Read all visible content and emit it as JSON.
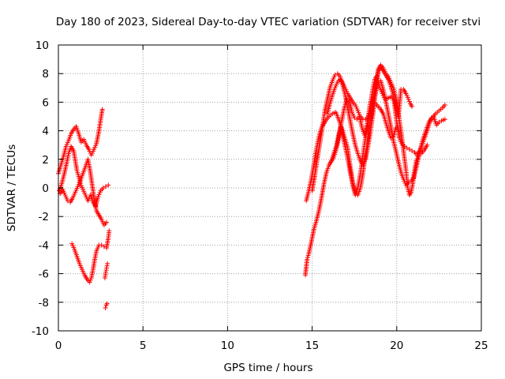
{
  "chart_data": {
    "type": "scatter",
    "title": "Day 180 of 2023, Sidereal Day-to-day VTEC variation (SDTVAR) for receiver stvi",
    "xlabel": "GPS time / hours",
    "ylabel": "SDTVAR / TECUs",
    "xlim": [
      0,
      25
    ],
    "ylim": [
      -10,
      10
    ],
    "x_ticks": [
      0,
      5,
      10,
      15,
      20,
      25
    ],
    "y_ticks": [
      -10,
      -8,
      -6,
      -4,
      -2,
      0,
      2,
      4,
      6,
      8,
      10
    ],
    "x_tick_labels": [
      "0",
      "5",
      "10",
      "15",
      "20",
      "25"
    ],
    "y_tick_labels": [
      "-10",
      "-8",
      "-6",
      "-4",
      "-2",
      "0",
      "2",
      "4",
      "6",
      "8",
      "10"
    ],
    "grid": true,
    "marker": "+",
    "colors": {
      "series": "#ff0000",
      "grid": "#a0a0a0",
      "axis": "#000000"
    },
    "series": [
      {
        "points": [
          [
            0.0,
            1.0
          ],
          [
            0.15,
            1.6
          ],
          [
            0.3,
            2.2
          ],
          [
            0.45,
            2.9
          ],
          [
            0.6,
            3.3
          ],
          [
            0.75,
            3.8
          ],
          [
            0.9,
            4.1
          ],
          [
            1.05,
            4.3
          ],
          [
            1.2,
            3.8
          ],
          [
            1.35,
            3.2
          ],
          [
            1.5,
            3.4
          ],
          [
            1.65,
            3.0
          ],
          [
            1.8,
            2.7
          ],
          [
            1.95,
            2.3
          ],
          [
            2.1,
            2.7
          ],
          [
            2.25,
            3.1
          ],
          [
            2.4,
            4.0
          ],
          [
            2.5,
            4.8
          ],
          [
            2.6,
            5.5
          ]
        ]
      },
      {
        "points": [
          [
            0.05,
            -0.2
          ],
          [
            0.2,
            0.3
          ],
          [
            0.35,
            1.0
          ],
          [
            0.5,
            1.8
          ],
          [
            0.6,
            2.4
          ],
          [
            0.75,
            2.9
          ],
          [
            0.9,
            2.6
          ],
          [
            1.0,
            1.9
          ],
          [
            1.1,
            1.2
          ],
          [
            1.2,
            0.8
          ],
          [
            1.3,
            0.3
          ],
          [
            1.45,
            -0.1
          ],
          [
            1.6,
            -0.5
          ],
          [
            1.75,
            -0.9
          ],
          [
            1.9,
            -0.5
          ],
          [
            2.05,
            -1.0
          ],
          [
            2.2,
            -1.3
          ],
          [
            2.35,
            -0.6
          ],
          [
            2.5,
            -0.2
          ],
          [
            2.65,
            0.0
          ],
          [
            2.8,
            0.1
          ],
          [
            2.95,
            0.2
          ]
        ]
      },
      {
        "points": [
          [
            0.1,
            -0.4
          ],
          [
            0.25,
            -0.1
          ],
          [
            0.4,
            -0.5
          ],
          [
            0.55,
            -0.9
          ],
          [
            0.7,
            -1.0
          ],
          [
            0.85,
            -0.7
          ],
          [
            1.0,
            -0.3
          ],
          [
            1.15,
            0.1
          ],
          [
            1.3,
            0.5
          ],
          [
            1.45,
            1.0
          ],
          [
            1.6,
            1.5
          ],
          [
            1.75,
            2.0
          ],
          [
            1.85,
            1.4
          ],
          [
            1.95,
            0.6
          ],
          [
            2.05,
            -0.2
          ],
          [
            2.15,
            -1.0
          ],
          [
            2.25,
            -1.6
          ],
          [
            2.4,
            -1.9
          ],
          [
            2.55,
            -2.2
          ],
          [
            2.7,
            -2.6
          ],
          [
            2.85,
            -2.4
          ]
        ]
      },
      {
        "points": [
          [
            0.8,
            -3.9
          ],
          [
            0.95,
            -4.3
          ],
          [
            1.1,
            -4.8
          ],
          [
            1.25,
            -5.3
          ],
          [
            1.4,
            -5.7
          ],
          [
            1.55,
            -6.1
          ],
          [
            1.7,
            -6.4
          ],
          [
            1.85,
            -6.6
          ],
          [
            1.95,
            -6.3
          ],
          [
            2.05,
            -5.7
          ],
          [
            2.15,
            -5.0
          ],
          [
            2.25,
            -4.4
          ],
          [
            2.4,
            -4.0
          ],
          [
            2.55,
            -4.0
          ],
          [
            2.7,
            -4.1
          ],
          [
            2.85,
            -4.2
          ],
          [
            2.95,
            -3.5
          ],
          [
            3.0,
            -3.0
          ]
        ]
      },
      {
        "points": [
          [
            2.75,
            -6.3
          ],
          [
            2.8,
            -5.9
          ],
          [
            2.85,
            -5.6
          ],
          [
            2.9,
            -5.3
          ],
          [
            2.78,
            -8.4
          ],
          [
            2.83,
            -8.2
          ],
          [
            2.88,
            -8.1
          ]
        ]
      },
      {
        "points": [
          [
            14.6,
            -6.1
          ],
          [
            14.7,
            -5.0
          ],
          [
            14.8,
            -4.6
          ],
          [
            14.95,
            -3.8
          ],
          [
            15.1,
            -2.9
          ],
          [
            15.25,
            -2.3
          ],
          [
            15.4,
            -1.6
          ],
          [
            15.55,
            -0.7
          ],
          [
            15.7,
            0.3
          ],
          [
            15.85,
            1.1
          ],
          [
            16.0,
            1.6
          ],
          [
            16.15,
            1.9
          ],
          [
            16.3,
            2.5
          ],
          [
            16.45,
            3.0
          ],
          [
            16.6,
            3.9
          ],
          [
            16.75,
            4.7
          ],
          [
            16.9,
            5.6
          ],
          [
            17.05,
            6.2
          ],
          [
            17.2,
            6.1
          ],
          [
            17.35,
            5.3
          ],
          [
            17.5,
            4.9
          ],
          [
            17.65,
            4.8
          ],
          [
            17.8,
            5.0
          ],
          [
            17.95,
            4.2
          ],
          [
            18.1,
            3.7
          ],
          [
            18.25,
            4.5
          ],
          [
            18.4,
            5.7
          ],
          [
            18.5,
            6.3
          ],
          [
            18.6,
            7.0
          ],
          [
            18.7,
            7.6
          ],
          [
            18.8,
            7.8
          ],
          [
            18.9,
            7.5
          ],
          [
            19.0,
            7.0
          ],
          [
            19.15,
            6.6
          ],
          [
            19.3,
            6.2
          ],
          [
            19.5,
            6.3
          ],
          [
            19.7,
            6.4
          ],
          [
            19.85,
            6.0
          ],
          [
            20.0,
            4.6
          ],
          [
            20.15,
            3.5
          ],
          [
            20.3,
            3.1
          ],
          [
            20.45,
            2.9
          ],
          [
            20.6,
            2.8
          ],
          [
            20.75,
            2.7
          ],
          [
            20.9,
            2.6
          ],
          [
            21.05,
            2.5
          ],
          [
            21.2,
            2.3
          ],
          [
            21.35,
            2.6
          ],
          [
            21.5,
            3.0
          ],
          [
            21.65,
            3.5
          ],
          [
            21.8,
            4.0
          ],
          [
            21.95,
            4.6
          ],
          [
            22.1,
            4.9
          ],
          [
            22.3,
            5.2
          ],
          [
            22.5,
            5.4
          ],
          [
            22.7,
            5.6
          ],
          [
            22.85,
            5.8
          ]
        ]
      },
      {
        "points": [
          [
            14.65,
            -0.9
          ],
          [
            14.8,
            -0.2
          ],
          [
            14.95,
            0.6
          ],
          [
            15.1,
            1.6
          ],
          [
            15.2,
            2.4
          ],
          [
            15.3,
            3.0
          ],
          [
            15.4,
            3.6
          ],
          [
            15.55,
            4.2
          ],
          [
            15.7,
            4.5
          ],
          [
            15.85,
            4.8
          ],
          [
            16.0,
            5.0
          ],
          [
            16.2,
            5.2
          ],
          [
            16.4,
            5.3
          ],
          [
            16.6,
            4.7
          ],
          [
            16.8,
            4.0
          ],
          [
            16.95,
            3.4
          ],
          [
            17.1,
            2.8
          ],
          [
            17.25,
            1.5
          ],
          [
            17.4,
            0.4
          ],
          [
            17.55,
            -0.3
          ],
          [
            17.7,
            -0.5
          ],
          [
            17.85,
            0.0
          ],
          [
            18.0,
            1.0
          ],
          [
            18.15,
            2.3
          ],
          [
            18.3,
            3.5
          ],
          [
            18.45,
            4.7
          ],
          [
            18.6,
            5.8
          ],
          [
            18.75,
            6.7
          ],
          [
            18.9,
            7.4
          ],
          [
            19.05,
            7.5
          ],
          [
            19.2,
            6.9
          ],
          [
            19.35,
            6.1
          ],
          [
            19.5,
            5.2
          ],
          [
            19.65,
            4.3
          ],
          [
            19.8,
            3.3
          ],
          [
            19.95,
            2.6
          ],
          [
            20.1,
            1.8
          ],
          [
            20.25,
            1.1
          ],
          [
            20.4,
            0.6
          ],
          [
            20.55,
            0.2
          ],
          [
            20.7,
            0.4
          ],
          [
            20.85,
            0.5
          ],
          [
            21.0,
            0.7
          ],
          [
            21.15,
            1.4
          ],
          [
            21.3,
            2.2
          ],
          [
            21.45,
            3.0
          ],
          [
            21.6,
            3.6
          ],
          [
            21.75,
            4.1
          ],
          [
            21.9,
            4.6
          ],
          [
            22.05,
            4.9
          ],
          [
            22.2,
            4.9
          ],
          [
            22.35,
            4.4
          ],
          [
            22.5,
            4.6
          ],
          [
            22.65,
            4.7
          ],
          [
            22.85,
            4.8
          ]
        ]
      },
      {
        "points": [
          [
            15.0,
            -0.2
          ],
          [
            15.15,
            0.8
          ],
          [
            15.3,
            2.0
          ],
          [
            15.45,
            3.1
          ],
          [
            15.6,
            4.2
          ],
          [
            15.75,
            5.4
          ],
          [
            15.9,
            6.2
          ],
          [
            16.05,
            7.0
          ],
          [
            16.2,
            7.5
          ],
          [
            16.35,
            7.9
          ],
          [
            16.5,
            8.0
          ],
          [
            16.65,
            7.8
          ],
          [
            16.8,
            7.2
          ],
          [
            16.95,
            6.5
          ],
          [
            17.1,
            5.6
          ],
          [
            17.25,
            4.7
          ],
          [
            17.4,
            3.8
          ],
          [
            17.55,
            3.0
          ],
          [
            17.7,
            2.4
          ],
          [
            17.85,
            1.9
          ],
          [
            18.0,
            1.6
          ],
          [
            18.15,
            2.0
          ],
          [
            18.3,
            2.9
          ],
          [
            18.45,
            4.0
          ],
          [
            18.6,
            5.2
          ],
          [
            18.75,
            6.7
          ],
          [
            18.9,
            8.3
          ],
          [
            19.05,
            8.6
          ],
          [
            19.2,
            8.4
          ],
          [
            19.35,
            8.0
          ],
          [
            19.5,
            7.8
          ],
          [
            19.65,
            7.4
          ],
          [
            19.8,
            7.0
          ],
          [
            19.95,
            6.3
          ],
          [
            20.1,
            5.2
          ],
          [
            20.25,
            4.0
          ],
          [
            20.4,
            2.6
          ],
          [
            20.55,
            1.2
          ],
          [
            20.65,
            0.0
          ],
          [
            20.75,
            -0.5
          ],
          [
            20.85,
            -0.3
          ],
          [
            20.95,
            0.3
          ],
          [
            21.05,
            1.2
          ],
          [
            21.15,
            1.9
          ],
          [
            21.3,
            2.3
          ],
          [
            21.45,
            2.4
          ],
          [
            21.6,
            2.6
          ],
          [
            21.8,
            3.0
          ]
        ]
      },
      {
        "points": [
          [
            15.9,
            5.2
          ],
          [
            16.05,
            5.9
          ],
          [
            16.2,
            6.5
          ],
          [
            16.35,
            7.0
          ],
          [
            16.5,
            7.4
          ],
          [
            16.65,
            7.6
          ],
          [
            16.8,
            7.4
          ],
          [
            16.95,
            7.0
          ],
          [
            17.1,
            6.6
          ],
          [
            17.25,
            6.3
          ],
          [
            17.4,
            6.0
          ],
          [
            17.55,
            5.8
          ],
          [
            17.7,
            5.4
          ],
          [
            17.85,
            5.0
          ],
          [
            18.0,
            4.8
          ],
          [
            18.15,
            4.8
          ],
          [
            18.3,
            4.9
          ],
          [
            18.45,
            5.3
          ],
          [
            18.6,
            6.1
          ],
          [
            18.75,
            7.2
          ],
          [
            18.9,
            8.1
          ],
          [
            19.05,
            8.5
          ],
          [
            19.2,
            8.2
          ],
          [
            19.35,
            7.9
          ],
          [
            19.5,
            7.6
          ],
          [
            19.65,
            7.1
          ],
          [
            19.8,
            6.5
          ],
          [
            19.95,
            5.7
          ],
          [
            20.1,
            5.0
          ],
          [
            20.25,
            6.9
          ],
          [
            20.4,
            6.9
          ],
          [
            20.55,
            6.6
          ],
          [
            20.7,
            6.2
          ],
          [
            20.8,
            5.9
          ],
          [
            20.9,
            5.7
          ]
        ]
      },
      {
        "points": [
          [
            16.1,
            1.8
          ],
          [
            16.25,
            2.1
          ],
          [
            16.4,
            2.6
          ],
          [
            16.55,
            3.4
          ],
          [
            16.7,
            4.3
          ],
          [
            16.8,
            3.7
          ],
          [
            16.95,
            2.9
          ],
          [
            17.1,
            2.1
          ],
          [
            17.25,
            1.1
          ],
          [
            17.4,
            0.2
          ],
          [
            17.55,
            -0.5
          ],
          [
            17.7,
            0.0
          ],
          [
            17.85,
            1.0
          ],
          [
            18.0,
            2.3
          ],
          [
            18.15,
            3.5
          ],
          [
            18.3,
            4.5
          ],
          [
            18.45,
            5.3
          ],
          [
            18.6,
            5.8
          ],
          [
            18.75,
            5.9
          ],
          [
            18.9,
            5.7
          ],
          [
            19.05,
            5.5
          ],
          [
            19.2,
            5.2
          ],
          [
            19.35,
            4.6
          ],
          [
            19.5,
            4.0
          ],
          [
            19.65,
            3.5
          ],
          [
            19.8,
            3.6
          ],
          [
            19.95,
            4.2
          ]
        ]
      }
    ]
  }
}
